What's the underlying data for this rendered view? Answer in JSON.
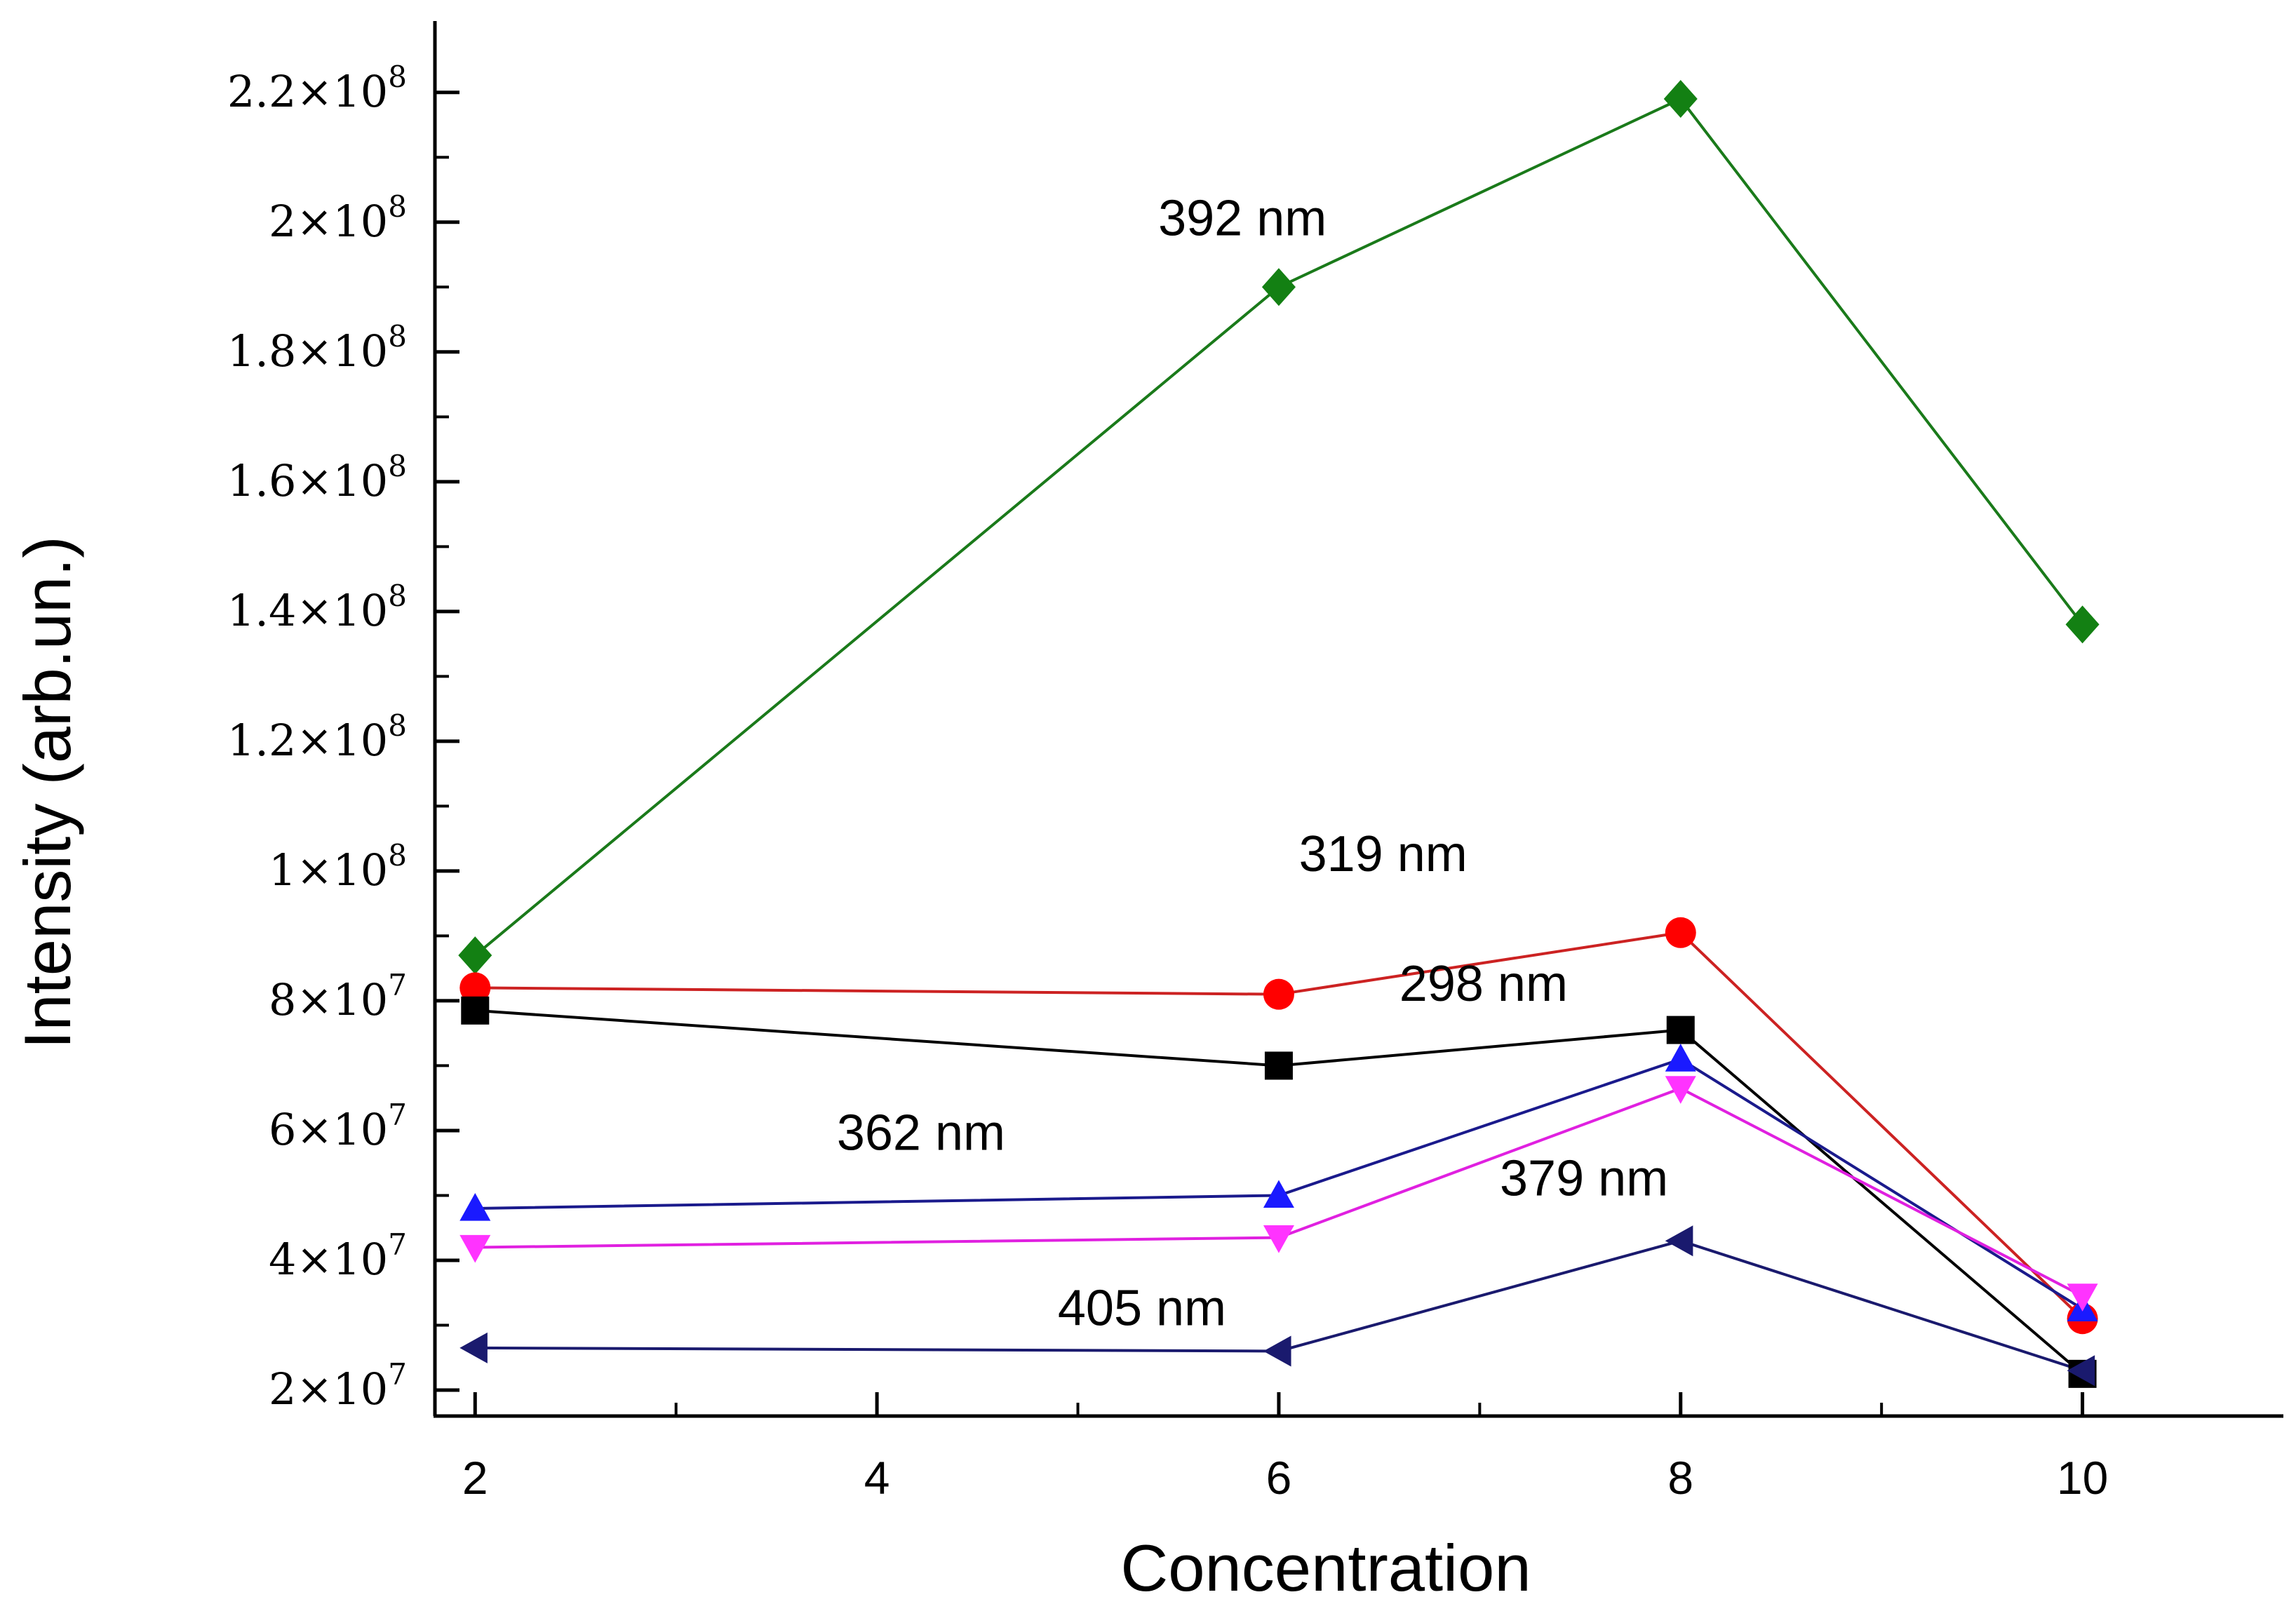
{
  "chart_data": {
    "type": "line",
    "title": "",
    "xlabel": "Concentration",
    "ylabel": "Intensity (arb.un.)",
    "xlim": [
      1.8,
      11
    ],
    "ylim": [
      16000000,
      231000000
    ],
    "x_ticks": [
      {
        "value": 2,
        "label": "2"
      },
      {
        "value": 4,
        "label": "4"
      },
      {
        "value": 6,
        "label": "6"
      },
      {
        "value": 8,
        "label": "8"
      },
      {
        "value": 10,
        "label": "10"
      }
    ],
    "x_minor_ticks": [
      3,
      5,
      7,
      9
    ],
    "y_ticks": [
      {
        "value": 20000000,
        "mantissa": "2×10",
        "exp": "7"
      },
      {
        "value": 40000000,
        "mantissa": "4×10",
        "exp": "7"
      },
      {
        "value": 60000000,
        "mantissa": "6×10",
        "exp": "7"
      },
      {
        "value": 80000000,
        "mantissa": "8×10",
        "exp": "7"
      },
      {
        "value": 100000000,
        "mantissa": "1×10",
        "exp": "8"
      },
      {
        "value": 120000000,
        "mantissa": "1.2×10",
        "exp": "8"
      },
      {
        "value": 140000000,
        "mantissa": "1.4×10",
        "exp": "8"
      },
      {
        "value": 160000000,
        "mantissa": "1.6×10",
        "exp": "8"
      },
      {
        "value": 180000000,
        "mantissa": "1.8×10",
        "exp": "8"
      },
      {
        "value": 200000000,
        "mantissa": "2×10",
        "exp": "8"
      },
      {
        "value": 220000000,
        "mantissa": "2.2×10",
        "exp": "8"
      }
    ],
    "x": [
      2,
      6,
      8,
      10
    ],
    "series": [
      {
        "name": "392 nm",
        "marker": "diamond",
        "line_color": "#1a7a1a",
        "marker_color": "#138013",
        "values": [
          87000000,
          190000000,
          219000000,
          138000000
        ],
        "label_anchor": {
          "x": 5.4,
          "y": 198000000
        }
      },
      {
        "name": "319 nm",
        "marker": "circle",
        "line_color": "#cc2222",
        "marker_color": "#ff0000",
        "values": [
          82000000,
          81000000,
          90500000,
          31000000
        ],
        "label_anchor": {
          "x": 6.1,
          "y": 100000000
        }
      },
      {
        "name": "298 nm",
        "marker": "square",
        "line_color": "#000000",
        "marker_color": "#000000",
        "values": [
          78500000,
          70000000,
          75500000,
          22500000
        ],
        "label_anchor": {
          "x": 6.6,
          "y": 80000000
        }
      },
      {
        "name": "362 nm",
        "marker": "triangle-up",
        "line_color": "#1a1a8c",
        "marker_color": "#1a1aff",
        "values": [
          48000000,
          50000000,
          71000000,
          32500000
        ],
        "label_anchor": {
          "x": 3.8,
          "y": 57000000
        }
      },
      {
        "name": "379 nm",
        "marker": "triangle-down",
        "line_color": "#e020e0",
        "marker_color": "#ff33ff",
        "values": [
          42000000,
          43500000,
          66500000,
          34500000
        ],
        "label_anchor": {
          "x": 7.1,
          "y": 50000000
        }
      },
      {
        "name": "405 nm",
        "marker": "triangle-left",
        "line_color": "#1a1a6e",
        "marker_color": "#1a1a6e",
        "values": [
          26500000,
          26000000,
          43000000,
          23000000
        ],
        "label_anchor": {
          "x": 4.9,
          "y": 30000000
        }
      }
    ]
  }
}
